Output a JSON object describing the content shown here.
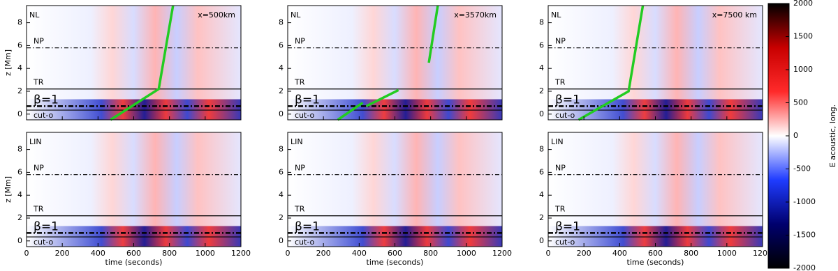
{
  "chart_data": [
    {
      "type": "wave",
      "title": "NL",
      "annotation": "x=500km",
      "ylabel": "z [Mm]",
      "xlim": [
        0,
        1200
      ],
      "xticks": [
        0,
        200,
        400,
        600,
        800,
        1000,
        1200
      ],
      "ylim": [
        -0.5,
        9.5
      ],
      "yticks": [
        0,
        2,
        4,
        6,
        8
      ],
      "ref_lines": [
        {
          "label": "NP",
          "y": 5.8,
          "style": "dashdot"
        },
        {
          "label": "TR",
          "y": 2.2,
          "style": "solid"
        },
        {
          "label": "β=1",
          "y": 0.7,
          "style": "thickdash"
        },
        {
          "label": "cut-o",
          "y": 0.35,
          "style": "solid"
        }
      ],
      "series": [
        {
          "color": "#22cc22",
          "x": [
            470,
            740,
            820
          ],
          "values": [
            -0.5,
            2.2,
            9.5
          ]
        }
      ]
    },
    {
      "type": "wave",
      "title": "NL",
      "annotation": "x=3570km",
      "ylabel": null,
      "xlim": [
        0,
        1200
      ],
      "xticks": [
        0,
        200,
        400,
        600,
        800,
        1000,
        1200
      ],
      "ylim": [
        -0.5,
        9.5
      ],
      "yticks": [
        0,
        2,
        4,
        6,
        8
      ],
      "ref_lines": [
        {
          "label": "NP",
          "y": 5.8,
          "style": "dashdot"
        },
        {
          "label": "TR",
          "y": 2.2,
          "style": "solid"
        },
        {
          "label": "β=1",
          "y": 0.7,
          "style": "thickdash"
        },
        {
          "label": "cut-o",
          "y": 0.35,
          "style": "solid"
        }
      ],
      "series": [
        {
          "color": "#22cc22",
          "x": [
            280,
            420,
            null,
            440,
            620,
            null,
            790,
            840
          ],
          "values": [
            -0.5,
            1.0,
            null,
            0.7,
            2.1,
            null,
            4.5,
            9.5
          ]
        }
      ]
    },
    {
      "type": "wave",
      "title": "NL",
      "annotation": "x=7500 km",
      "ylabel": null,
      "xlim": [
        0,
        1200
      ],
      "xticks": [
        0,
        200,
        400,
        600,
        800,
        1000,
        1200
      ],
      "ylim": [
        -0.5,
        9.5
      ],
      "yticks": [
        0,
        2,
        4,
        6,
        8
      ],
      "ref_lines": [
        {
          "label": "NP",
          "y": 5.8,
          "style": "dashdot"
        },
        {
          "label": "TR",
          "y": 2.2,
          "style": "solid"
        },
        {
          "label": "β=1",
          "y": 0.7,
          "style": "thickdash"
        },
        {
          "label": "cut-o",
          "y": 0.35,
          "style": "solid"
        }
      ],
      "series": [
        {
          "color": "#22cc22",
          "x": [
            170,
            450,
            530
          ],
          "values": [
            -0.5,
            2.0,
            9.5
          ]
        }
      ]
    },
    {
      "type": "wave",
      "title": "LIN",
      "xlabel": "time (seconds)",
      "ylabel": "z [Mm]",
      "xlim": [
        0,
        1200
      ],
      "xticks": [
        0,
        200,
        400,
        600,
        800,
        1000,
        1200
      ],
      "ylim": [
        -0.5,
        9.5
      ],
      "yticks": [
        0,
        2,
        4,
        6,
        8
      ],
      "ref_lines": [
        {
          "label": "NP",
          "y": 5.8,
          "style": "dashdot"
        },
        {
          "label": "TR",
          "y": 2.2,
          "style": "solid"
        },
        {
          "label": "β=1",
          "y": 0.7,
          "style": "thickdash"
        },
        {
          "label": "cut-o",
          "y": 0.35,
          "style": "solid"
        }
      ]
    },
    {
      "type": "wave",
      "title": "LIN",
      "xlabel": "time (seconds)",
      "ylabel": null,
      "xlim": [
        0,
        1200
      ],
      "xticks": [
        0,
        200,
        400,
        600,
        800,
        1000,
        1200
      ],
      "ylim": [
        -0.5,
        9.5
      ],
      "yticks": [
        0,
        2,
        4,
        6,
        8
      ],
      "ref_lines": [
        {
          "label": "NP",
          "y": 5.8,
          "style": "dashdot"
        },
        {
          "label": "TR",
          "y": 2.2,
          "style": "solid"
        },
        {
          "label": "β=1",
          "y": 0.7,
          "style": "thickdash"
        },
        {
          "label": "cut-o",
          "y": 0.35,
          "style": "solid"
        }
      ]
    },
    {
      "type": "wave",
      "title": "LIN",
      "xlabel": "time (seconds)",
      "ylabel": null,
      "xlim": [
        0,
        1200
      ],
      "xticks": [
        0,
        200,
        400,
        600,
        800,
        1000,
        1200
      ],
      "ylim": [
        -0.5,
        9.5
      ],
      "yticks": [
        0,
        2,
        4,
        6,
        8
      ],
      "ref_lines": [
        {
          "label": "NP",
          "y": 5.8,
          "style": "dashdot"
        },
        {
          "label": "TR",
          "y": 2.2,
          "style": "solid"
        },
        {
          "label": "β=1",
          "y": 0.7,
          "style": "thickdash"
        },
        {
          "label": "cut-o",
          "y": 0.35,
          "style": "solid"
        }
      ]
    },
    {
      "type": "colorbar",
      "label": "E acoustic, long.",
      "ylim": [
        -2000,
        2000
      ],
      "yticks": [
        -2000,
        -1500,
        -1000,
        -500,
        0,
        500,
        1000,
        1500,
        2000
      ],
      "colormap": [
        "#000000",
        "#00006e",
        "#1f3cff",
        "#ffffff",
        "#ff2a2a",
        "#c80000",
        "#000000"
      ]
    }
  ]
}
